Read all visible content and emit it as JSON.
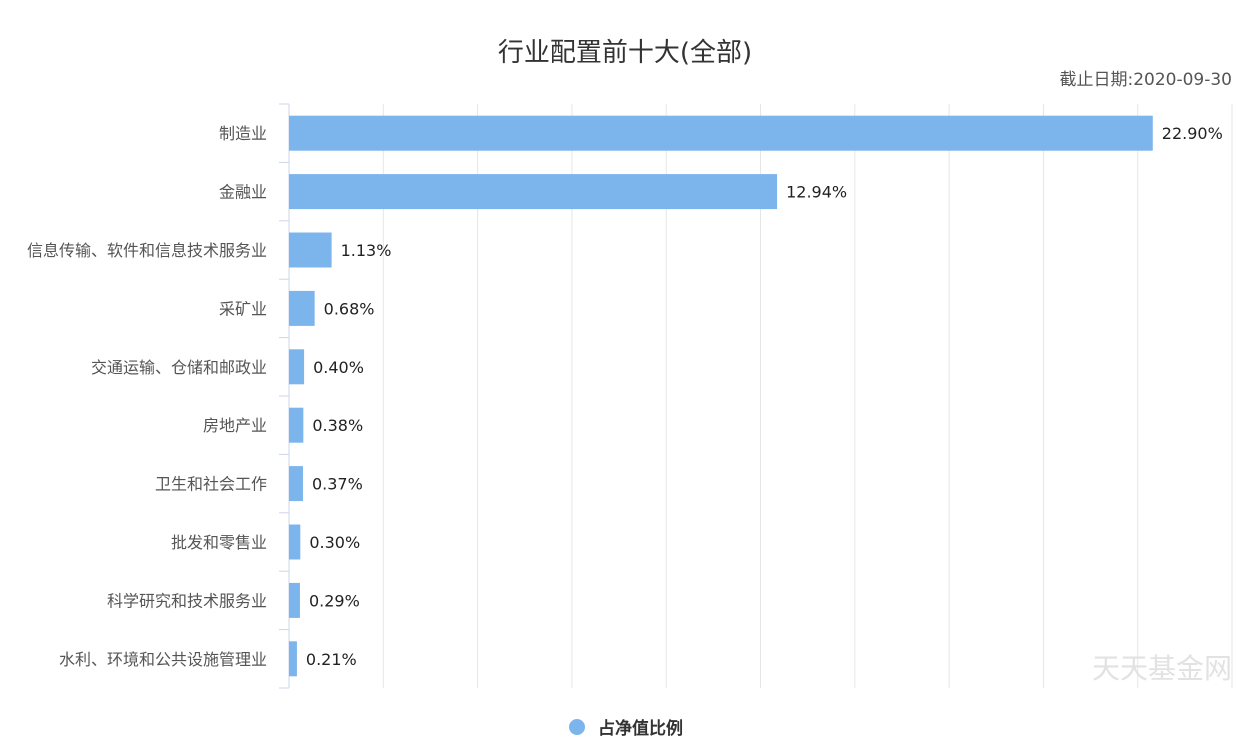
{
  "chart_data": {
    "type": "bar",
    "orientation": "horizontal",
    "title": "行业配置前十大(全部)",
    "subtitle": "截止日期:2020-09-30",
    "categories": [
      "制造业",
      "金融业",
      "信息传输、软件和信息技术服务业",
      "采矿业",
      "交通运输、仓储和邮政业",
      "房地产业",
      "卫生和社会工作",
      "批发和零售业",
      "科学研究和技术服务业",
      "水利、环境和公共设施管理业"
    ],
    "series": [
      {
        "name": "占净值比例",
        "values": [
          22.9,
          12.94,
          1.13,
          0.68,
          0.4,
          0.38,
          0.37,
          0.3,
          0.29,
          0.21
        ],
        "labels": [
          "22.90%",
          "12.94%",
          "1.13%",
          "0.68%",
          "0.40%",
          "0.38%",
          "0.37%",
          "0.30%",
          "0.29%",
          "0.21%"
        ],
        "color": "#7cb5ec"
      }
    ],
    "xlim": [
      0,
      25
    ],
    "grid": true,
    "legend_position": "bottom-center"
  },
  "colors": {
    "bar": "#7cb5ec",
    "grid": "#e6e6e6",
    "axis": "#ccd6eb"
  },
  "watermark": "天天基金网"
}
